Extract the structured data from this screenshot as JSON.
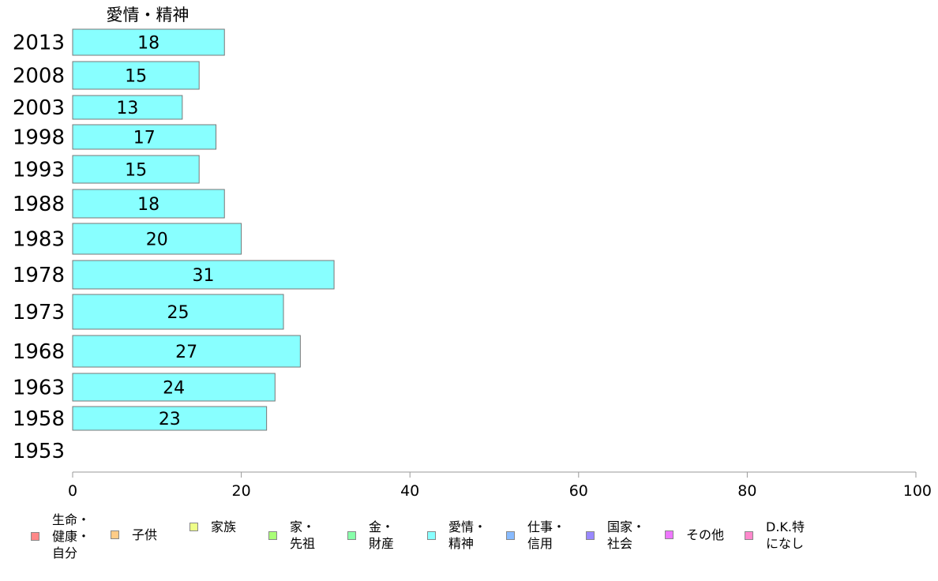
{
  "chart_data": {
    "type": "bar",
    "orientation": "horizontal",
    "title": "愛情・精神",
    "categories": [
      "2013",
      "2008",
      "2003",
      "1998",
      "1993",
      "1988",
      "1983",
      "1978",
      "1973",
      "1968",
      "1963",
      "1958",
      "1953"
    ],
    "series": [
      {
        "name": "愛情・精神",
        "color": "#88ffff",
        "values": [
          18,
          15,
          13,
          17,
          15,
          18,
          20,
          31,
          25,
          27,
          24,
          23,
          null
        ]
      }
    ],
    "xlim": [
      0,
      100
    ],
    "xticks": [
      0,
      20,
      40,
      60,
      80,
      100
    ],
    "grid": false,
    "legend_position": "bottom"
  },
  "legend": [
    {
      "label": "生命・\n健康・\n自分",
      "color": "#ff8888"
    },
    {
      "label": "子供",
      "color": "#ffcc88"
    },
    {
      "label": "家族",
      "color": "#eeff88"
    },
    {
      "label": "家・\n先祖",
      "color": "#aaff77"
    },
    {
      "label": "金・\n財産",
      "color": "#88ffaa"
    },
    {
      "label": "愛情・\n精神",
      "color": "#88ffff"
    },
    {
      "label": "仕事・\n信用",
      "color": "#88bbff"
    },
    {
      "label": "国家・\n社会",
      "color": "#9988ff"
    },
    {
      "label": "その他",
      "color": "#ee77ff"
    },
    {
      "label": "D.K.特\nになし",
      "color": "#ff88cc"
    }
  ]
}
